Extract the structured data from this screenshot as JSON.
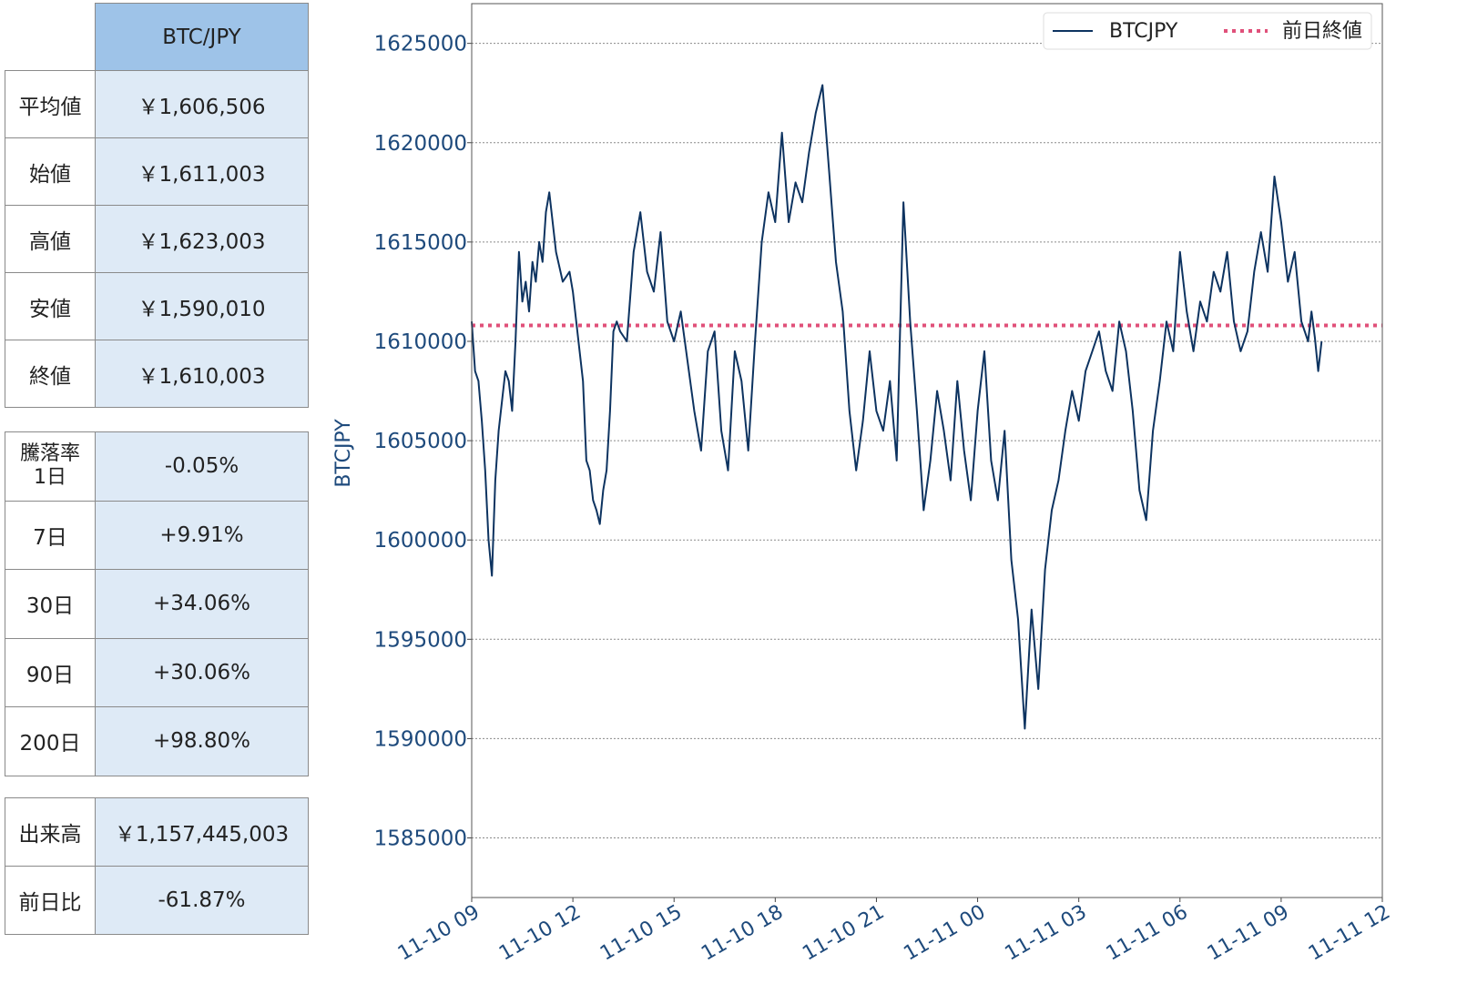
{
  "table_summary": {
    "header": "BTC/JPY",
    "rows": [
      {
        "label": "平均値",
        "value": "￥1,606,506"
      },
      {
        "label": "始値",
        "value": "￥1,611,003"
      },
      {
        "label": "高値",
        "value": "￥1,623,003"
      },
      {
        "label": "安値",
        "value": "￥1,590,010"
      },
      {
        "label": "終値",
        "value": "￥1,610,003"
      }
    ]
  },
  "table_change": {
    "rows": [
      {
        "label": "騰落率\n1日",
        "value": "-0.05%"
      },
      {
        "label": "7日",
        "value": "+9.91%"
      },
      {
        "label": "30日",
        "value": "+34.06%"
      },
      {
        "label": "90日",
        "value": "+30.06%"
      },
      {
        "label": "200日",
        "value": "+98.80%"
      }
    ]
  },
  "table_volume": {
    "rows": [
      {
        "label": "出来高",
        "value": "￥1,157,445,003"
      },
      {
        "label": "前日比",
        "value": "-61.87%"
      }
    ]
  },
  "chart_data": {
    "type": "line",
    "ylabel": "BTCJPY",
    "xlabel": "",
    "ylim": [
      1582000,
      1627000
    ],
    "yticks": [
      1585000,
      1590000,
      1595000,
      1600000,
      1605000,
      1610000,
      1615000,
      1620000,
      1625000
    ],
    "xlim_hours": [
      0,
      27
    ],
    "xticks": [
      "11-10 09",
      "11-10 12",
      "11-10 15",
      "11-10 18",
      "11-10 21",
      "11-11 00",
      "11-11 03",
      "11-11 06",
      "11-11 09",
      "11-11 12"
    ],
    "grid": "horizontal dotted",
    "legend_position": "top-right",
    "colors": {
      "line": "#0d3360",
      "prev_close": "#e0507a",
      "text": "#1e4a7c"
    },
    "series": [
      {
        "name": "BTCJPY",
        "x_hours": [
          0,
          0.1,
          0.2,
          0.3,
          0.4,
          0.5,
          0.6,
          0.7,
          0.8,
          0.9,
          1.0,
          1.1,
          1.2,
          1.3,
          1.4,
          1.5,
          1.6,
          1.7,
          1.8,
          1.9,
          2.0,
          2.1,
          2.2,
          2.3,
          2.5,
          2.7,
          2.9,
          3.0,
          3.1,
          3.2,
          3.3,
          3.4,
          3.5,
          3.6,
          3.7,
          3.8,
          3.9,
          4.0,
          4.1,
          4.2,
          4.3,
          4.4,
          4.6,
          4.8,
          5.0,
          5.2,
          5.4,
          5.6,
          5.8,
          6.0,
          6.2,
          6.4,
          6.6,
          6.8,
          7.0,
          7.2,
          7.4,
          7.6,
          7.8,
          8.0,
          8.2,
          8.4,
          8.6,
          8.8,
          9.0,
          9.2,
          9.4,
          9.6,
          9.8,
          10.0,
          10.2,
          10.4,
          10.6,
          10.8,
          11.0,
          11.2,
          11.4,
          11.6,
          11.8,
          12.0,
          12.2,
          12.4,
          12.6,
          12.8,
          13.0,
          13.2,
          13.4,
          13.6,
          13.8,
          14.0,
          14.2,
          14.4,
          14.6,
          14.8,
          15.0,
          15.2,
          15.4,
          15.6,
          15.8,
          16.0,
          16.2,
          16.4,
          16.6,
          16.8,
          17.0,
          17.2,
          17.4,
          17.6,
          17.8,
          18.0,
          18.2,
          18.4,
          18.6,
          18.8,
          19.0,
          19.2,
          19.4,
          19.6,
          19.8,
          20.0,
          20.2,
          20.4,
          20.6,
          20.8,
          21.0,
          21.2,
          21.4,
          21.6,
          21.8,
          22.0,
          22.2,
          22.4,
          22.6,
          22.8,
          23.0,
          23.2,
          23.4,
          23.6,
          23.8,
          24.0,
          24.2,
          24.4,
          24.6,
          24.8,
          24.9,
          25.0,
          25.1,
          25.2
        ],
        "values": [
          1611000,
          1608500,
          1608000,
          1606000,
          1603500,
          1600000,
          1598200,
          1603000,
          1605500,
          1607000,
          1608500,
          1608000,
          1606500,
          1610000,
          1614500,
          1612000,
          1613000,
          1611500,
          1614000,
          1613000,
          1615000,
          1614000,
          1616500,
          1617500,
          1614500,
          1613000,
          1613500,
          1612500,
          1611000,
          1609500,
          1608000,
          1604000,
          1603500,
          1602000,
          1601500,
          1600800,
          1602500,
          1603500,
          1606500,
          1610500,
          1611000,
          1610500,
          1610000,
          1614500,
          1616500,
          1613500,
          1612500,
          1615500,
          1611000,
          1610000,
          1611500,
          1609000,
          1606500,
          1604500,
          1609500,
          1610500,
          1605500,
          1603500,
          1609500,
          1608000,
          1604500,
          1610000,
          1615000,
          1617500,
          1616000,
          1620500,
          1616000,
          1618000,
          1617000,
          1619500,
          1621500,
          1622900,
          1618500,
          1614000,
          1611500,
          1606500,
          1603500,
          1606000,
          1609500,
          1606500,
          1605500,
          1608000,
          1604000,
          1617000,
          1611000,
          1606500,
          1601500,
          1604000,
          1607500,
          1605500,
          1603000,
          1608000,
          1604500,
          1602000,
          1606500,
          1609500,
          1604000,
          1602000,
          1605500,
          1599000,
          1596000,
          1590500,
          1596500,
          1592500,
          1598500,
          1601500,
          1603000,
          1605500,
          1607500,
          1606000,
          1608500,
          1609500,
          1610500,
          1608500,
          1607500,
          1611000,
          1609500,
          1606500,
          1602500,
          1601000,
          1605500,
          1608000,
          1611000,
          1609500,
          1614500,
          1611500,
          1609500,
          1612000,
          1611000,
          1613500,
          1612500,
          1614500,
          1611000,
          1609500,
          1610500,
          1613500,
          1615500,
          1613500,
          1618300,
          1616000,
          1613000,
          1614500,
          1611000,
          1610000,
          1611500,
          1610200,
          1608500,
          1610000
        ]
      },
      {
        "name": "前日終値",
        "value": 1610800
      }
    ]
  }
}
